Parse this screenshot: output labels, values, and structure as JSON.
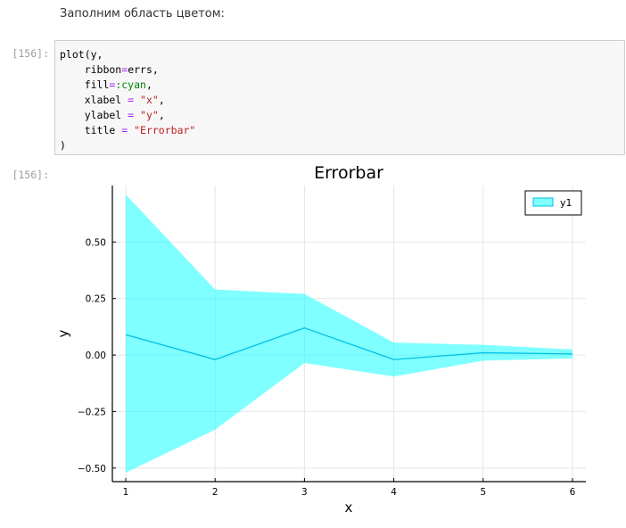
{
  "markdown": {
    "text": "Заполним область цветом:"
  },
  "cell_in": {
    "prompt": "[156]:",
    "code": {
      "l1_fn": "plot(y,",
      "l2_kw": "    ribbon",
      "l2_op": "=",
      "l2_val": "errs,",
      "l3_kw": "    fill",
      "l3_op": "=",
      "l3_sym": ":cyan",
      "l3_end": ",",
      "l4_kw": "    xlabel ",
      "l4_op": "=",
      "l4_str": " \"x\"",
      "l4_end": ",",
      "l5_kw": "    ylabel ",
      "l5_op": "=",
      "l5_str": " \"y\"",
      "l5_end": ",",
      "l6_kw": "    title ",
      "l6_op": "=",
      "l6_str": " \"Errorbar\"",
      "l7": ")"
    }
  },
  "cell_out": {
    "prompt": "[156]:"
  },
  "chart_data": {
    "type": "line",
    "title": "Errorbar",
    "xlabel": "x",
    "ylabel": "y",
    "x": [
      1,
      2,
      3,
      4,
      5,
      6
    ],
    "xticks": [
      "1",
      "2",
      "3",
      "4",
      "5",
      "6"
    ],
    "yticks": [
      -0.5,
      -0.25,
      0,
      0.25,
      0.5
    ],
    "ytick_labels": [
      "−0.50",
      "−0.25",
      "0.00",
      "0.25",
      "0.50"
    ],
    "xlim": [
      0.85,
      6.15
    ],
    "ylim": [
      -0.56,
      0.75
    ],
    "grid": true,
    "legend_position": "top-right",
    "series": [
      {
        "name": "y1",
        "color": "#00bfe8",
        "fill_color": "#00ffff",
        "values": [
          0.09,
          -0.02,
          0.12,
          -0.02,
          0.01,
          0.005
        ],
        "ribbon_upper": [
          0.71,
          0.29,
          0.27,
          0.055,
          0.045,
          0.025
        ],
        "ribbon_lower": [
          -0.52,
          -0.33,
          -0.035,
          -0.095,
          -0.025,
          -0.015
        ]
      }
    ]
  }
}
